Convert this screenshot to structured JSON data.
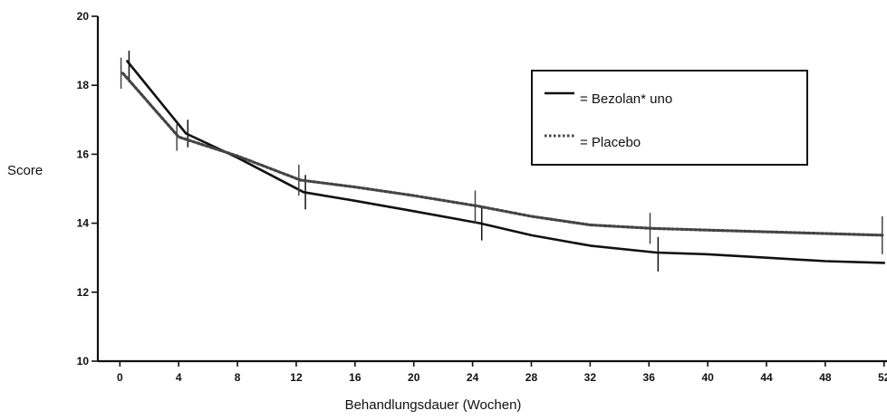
{
  "chart_data": {
    "type": "line",
    "title": "",
    "ylabel": "Score",
    "xlabel": "Behandlungsdauer (Wochen)",
    "x": [
      0,
      4,
      8,
      12,
      16,
      20,
      24,
      28,
      32,
      36,
      40,
      44,
      48,
      52
    ],
    "x_tick_labels": [
      "0",
      "4",
      "8",
      "12",
      "16",
      "20",
      "24",
      "28",
      "32",
      "36",
      "40",
      "44",
      "48",
      "52"
    ],
    "y_tick_labels": [
      "10",
      "12",
      "14",
      "16",
      "18",
      "20"
    ],
    "ylim": [
      10,
      20
    ],
    "xlim": [
      -1.5,
      52.2
    ],
    "grid": false,
    "legend_position": "top-right",
    "series": [
      {
        "name": "= Bezolan* uno",
        "color": "#111111",
        "style": "solid",
        "points": [
          {
            "x": 0.5,
            "y": 18.7
          },
          {
            "x": 4.5,
            "y": 16.6
          },
          {
            "x": 8,
            "y": 15.9
          },
          {
            "x": 12.5,
            "y": 14.9
          },
          {
            "x": 16,
            "y": 14.65
          },
          {
            "x": 20,
            "y": 14.35
          },
          {
            "x": 24.5,
            "y": 14.0
          },
          {
            "x": 28,
            "y": 13.65
          },
          {
            "x": 32,
            "y": 13.35
          },
          {
            "x": 36.5,
            "y": 13.15
          },
          {
            "x": 40,
            "y": 13.1
          },
          {
            "x": 44,
            "y": 13.0
          },
          {
            "x": 48,
            "y": 12.9
          },
          {
            "x": 52,
            "y": 12.85
          }
        ],
        "error_bars": [
          {
            "x": 0.5,
            "low": 18.1,
            "high": 19.0
          },
          {
            "x": 4.5,
            "low": 16.2,
            "high": 17.0
          },
          {
            "x": 12.5,
            "low": 14.4,
            "high": 15.4
          },
          {
            "x": 24.5,
            "low": 13.5,
            "high": 14.5
          },
          {
            "x": 36.5,
            "low": 12.6,
            "high": 13.6
          }
        ]
      },
      {
        "name": "= Placebo",
        "color": "#444444",
        "style": "dotted",
        "points": [
          {
            "x": 0.2,
            "y": 18.35
          },
          {
            "x": 4,
            "y": 16.5
          },
          {
            "x": 8,
            "y": 15.95
          },
          {
            "x": 12.3,
            "y": 15.25
          },
          {
            "x": 16,
            "y": 15.05
          },
          {
            "x": 20,
            "y": 14.8
          },
          {
            "x": 24.3,
            "y": 14.5
          },
          {
            "x": 28,
            "y": 14.2
          },
          {
            "x": 32,
            "y": 13.95
          },
          {
            "x": 36.2,
            "y": 13.85
          },
          {
            "x": 40,
            "y": 13.8
          },
          {
            "x": 44,
            "y": 13.75
          },
          {
            "x": 48,
            "y": 13.7
          },
          {
            "x": 52,
            "y": 13.65
          }
        ],
        "error_bars": [
          {
            "x": 0.2,
            "low": 17.9,
            "high": 18.8
          },
          {
            "x": 4,
            "low": 16.1,
            "high": 16.9
          },
          {
            "x": 12.3,
            "low": 14.8,
            "high": 15.7
          },
          {
            "x": 24.3,
            "low": 14.0,
            "high": 14.95
          },
          {
            "x": 36.2,
            "low": 13.4,
            "high": 14.3
          },
          {
            "x": 52,
            "low": 13.1,
            "high": 14.2
          }
        ]
      }
    ]
  }
}
